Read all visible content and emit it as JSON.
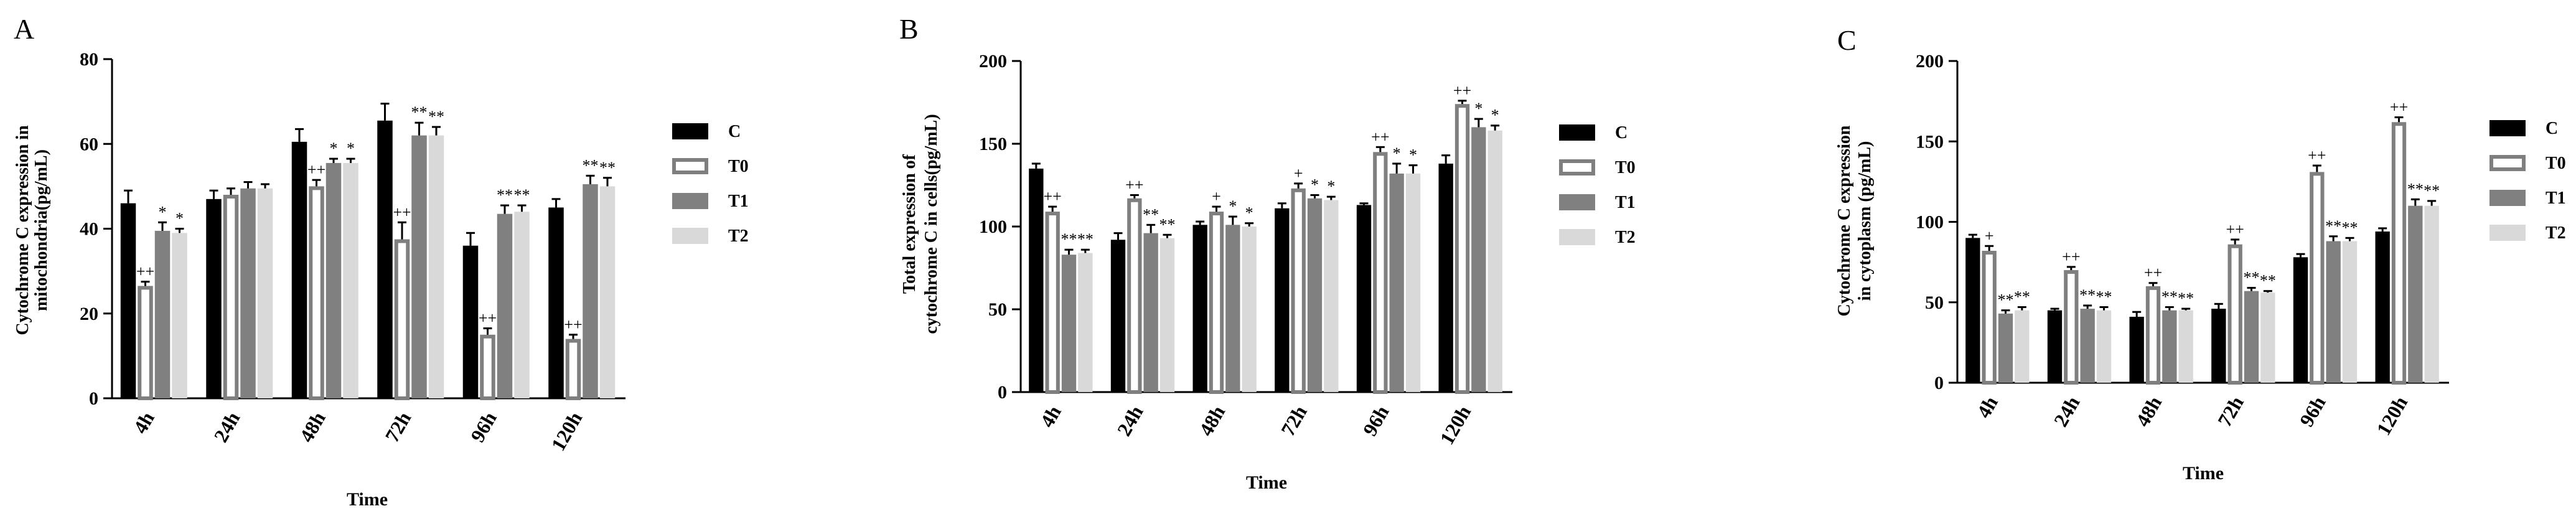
{
  "chart_data": [
    {
      "type": "bar",
      "panel_label": "A",
      "xlabel": "Time",
      "ylabel": [
        "Cytochrome C expression in",
        "mitochondria(pg/mL)"
      ],
      "ylim": [
        0,
        80
      ],
      "yticks": [
        "0",
        "20",
        "40",
        "60",
        "80"
      ],
      "categories": [
        "4h",
        "24h",
        "48h",
        "72h",
        "96h",
        "120h"
      ],
      "series": [
        {
          "name": "C",
          "values": [
            46,
            47,
            60.5,
            65.5,
            36,
            45
          ],
          "errors": [
            3,
            2,
            3,
            4,
            3,
            2
          ]
        },
        {
          "name": "T0",
          "values": [
            26.5,
            48,
            50,
            37.5,
            15,
            14
          ],
          "errors": [
            1,
            1.5,
            1.5,
            4,
            1.5,
            1
          ]
        },
        {
          "name": "T1",
          "values": [
            39.5,
            49.5,
            55.5,
            62,
            43.5,
            50.5
          ],
          "errors": [
            2,
            1.5,
            1,
            3,
            2,
            2
          ]
        },
        {
          "name": "T2",
          "values": [
            39,
            49.5,
            55.5,
            62,
            44,
            50
          ],
          "errors": [
            1,
            1,
            1,
            2,
            1.5,
            2
          ]
        }
      ],
      "annotations": [
        {
          "category": "4h",
          "series": "T0",
          "text": "++"
        },
        {
          "category": "4h",
          "series": "T1",
          "text": "*"
        },
        {
          "category": "4h",
          "series": "T2",
          "text": "*"
        },
        {
          "category": "48h",
          "series": "T0",
          "text": "++"
        },
        {
          "category": "48h",
          "series": "T1",
          "text": "*"
        },
        {
          "category": "48h",
          "series": "T2",
          "text": "*"
        },
        {
          "category": "72h",
          "series": "T0",
          "text": "++"
        },
        {
          "category": "72h",
          "series": "T1",
          "text": "**"
        },
        {
          "category": "72h",
          "series": "T2",
          "text": "**"
        },
        {
          "category": "96h",
          "series": "T0",
          "text": "++"
        },
        {
          "category": "96h",
          "series": "T1",
          "text": "**"
        },
        {
          "category": "96h",
          "series": "T2",
          "text": "**"
        },
        {
          "category": "120h",
          "series": "T0",
          "text": "++"
        },
        {
          "category": "120h",
          "series": "T1",
          "text": "**"
        },
        {
          "category": "120h",
          "series": "T2",
          "text": "**"
        }
      ]
    },
    {
      "type": "bar",
      "panel_label": "B",
      "xlabel": "Time",
      "ylabel": [
        "Total expression of",
        "cytochrome C in cells(pg/mL)"
      ],
      "ylim": [
        0,
        200
      ],
      "yticks": [
        "0",
        "50",
        "100",
        "150",
        "200"
      ],
      "categories": [
        "4h",
        "24h",
        "48h",
        "72h",
        "96h",
        "120h"
      ],
      "series": [
        {
          "name": "C",
          "values": [
            135,
            92,
            101,
            111,
            113,
            138
          ],
          "errors": [
            3,
            4,
            2,
            3,
            1,
            5
          ]
        },
        {
          "name": "T0",
          "values": [
            109,
            117,
            109,
            123,
            145,
            174
          ],
          "errors": [
            3,
            2,
            3,
            3,
            3,
            2
          ]
        },
        {
          "name": "T1",
          "values": [
            83,
            96,
            101,
            117,
            132,
            160
          ],
          "errors": [
            3,
            5,
            5,
            2,
            6,
            5
          ]
        },
        {
          "name": "T2",
          "values": [
            84,
            93,
            100,
            116,
            132,
            158
          ],
          "errors": [
            2,
            2,
            2,
            2,
            5,
            3
          ]
        }
      ],
      "annotations": [
        {
          "category": "4h",
          "series": "T0",
          "text": "++"
        },
        {
          "category": "4h",
          "series": "T1",
          "text": "**"
        },
        {
          "category": "4h",
          "series": "T2",
          "text": "**"
        },
        {
          "category": "24h",
          "series": "T0",
          "text": "++"
        },
        {
          "category": "24h",
          "series": "T1",
          "text": "**"
        },
        {
          "category": "24h",
          "series": "T2",
          "text": "**"
        },
        {
          "category": "48h",
          "series": "T0",
          "text": "+"
        },
        {
          "category": "48h",
          "series": "T1",
          "text": "*"
        },
        {
          "category": "48h",
          "series": "T2",
          "text": "*"
        },
        {
          "category": "72h",
          "series": "T0",
          "text": "+"
        },
        {
          "category": "72h",
          "series": "T1",
          "text": "*"
        },
        {
          "category": "72h",
          "series": "T2",
          "text": "*"
        },
        {
          "category": "96h",
          "series": "T0",
          "text": "++"
        },
        {
          "category": "96h",
          "series": "T1",
          "text": "*"
        },
        {
          "category": "96h",
          "series": "T2",
          "text": "*"
        },
        {
          "category": "120h",
          "series": "T0",
          "text": "++"
        },
        {
          "category": "120h",
          "series": "T1",
          "text": "*"
        },
        {
          "category": "120h",
          "series": "T2",
          "text": "*"
        }
      ]
    },
    {
      "type": "bar",
      "panel_label": "C",
      "xlabel": "Time",
      "ylabel": [
        "Cytochrome C expression",
        "in cytoplasm (pg/mL)"
      ],
      "ylim": [
        0,
        200
      ],
      "yticks": [
        "0",
        "50",
        "100",
        "150",
        "200"
      ],
      "categories": [
        "4h",
        "24h",
        "48h",
        "72h",
        "96h",
        "120h"
      ],
      "series": [
        {
          "name": "C",
          "values": [
            90,
            45,
            41,
            46,
            78,
            94
          ],
          "errors": [
            2,
            1,
            3,
            3,
            2,
            2
          ]
        },
        {
          "name": "T0",
          "values": [
            82,
            70,
            60,
            86,
            131,
            162
          ],
          "errors": [
            3,
            2,
            2,
            3,
            4,
            3
          ]
        },
        {
          "name": "T1",
          "values": [
            43,
            46,
            45,
            57,
            88,
            110
          ],
          "errors": [
            2,
            2,
            2,
            2,
            3,
            4
          ]
        },
        {
          "name": "T2",
          "values": [
            45,
            45,
            45,
            56,
            88,
            110
          ],
          "errors": [
            2,
            2,
            1,
            1,
            2,
            3
          ]
        }
      ],
      "annotations": [
        {
          "category": "4h",
          "series": "T0",
          "text": "+"
        },
        {
          "category": "4h",
          "series": "T1",
          "text": "**"
        },
        {
          "category": "4h",
          "series": "T2",
          "text": "**"
        },
        {
          "category": "24h",
          "series": "T0",
          "text": "++"
        },
        {
          "category": "24h",
          "series": "T1",
          "text": "**"
        },
        {
          "category": "24h",
          "series": "T2",
          "text": "**"
        },
        {
          "category": "48h",
          "series": "T0",
          "text": "++"
        },
        {
          "category": "48h",
          "series": "T1",
          "text": "**"
        },
        {
          "category": "48h",
          "series": "T2",
          "text": "**"
        },
        {
          "category": "72h",
          "series": "T0",
          "text": "++"
        },
        {
          "category": "72h",
          "series": "T1",
          "text": "**"
        },
        {
          "category": "72h",
          "series": "T2",
          "text": "**"
        },
        {
          "category": "96h",
          "series": "T0",
          "text": "++"
        },
        {
          "category": "96h",
          "series": "T1",
          "text": "**"
        },
        {
          "category": "96h",
          "series": "T2",
          "text": "**"
        },
        {
          "category": "120h",
          "series": "T0",
          "text": "++"
        },
        {
          "category": "120h",
          "series": "T1",
          "text": "**"
        },
        {
          "category": "120h",
          "series": "T2",
          "text": "**"
        }
      ]
    }
  ],
  "series_style": {
    "C": {
      "fill": "#000000",
      "stroke": "#000000"
    },
    "T0": {
      "fill": "#ffffff",
      "stroke": "#7f7f7f"
    },
    "T1": {
      "fill": "#808080",
      "stroke": "#808080"
    },
    "T2": {
      "fill": "#d9d9d9",
      "stroke": "#d9d9d9"
    }
  }
}
